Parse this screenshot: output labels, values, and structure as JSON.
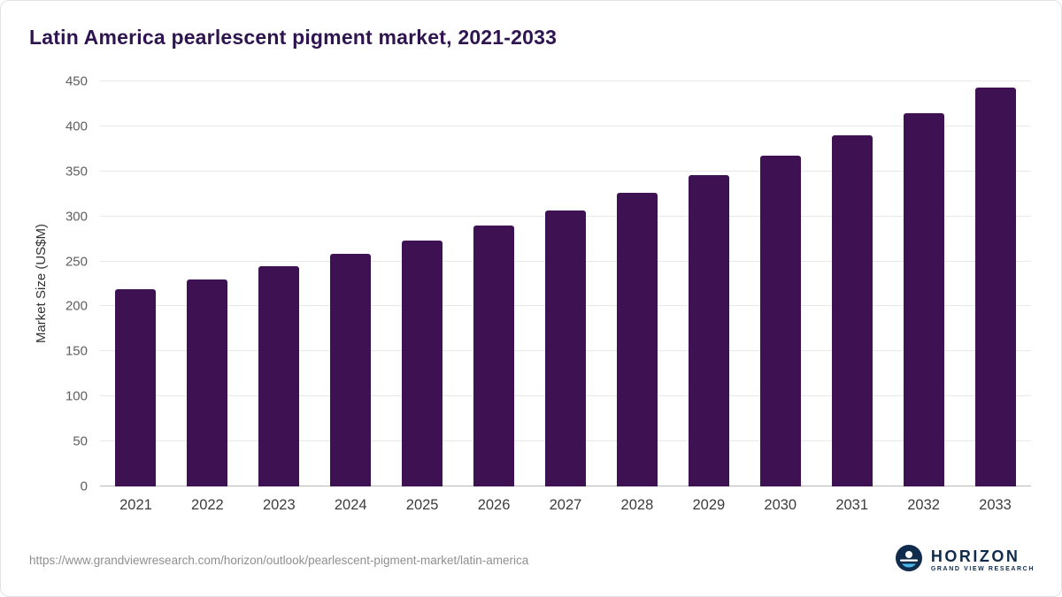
{
  "title": "Latin America pearlescent pigment market, 2021-2033",
  "footer": {
    "source_url": "https://www.grandviewresearch.com/horizon/outlook/pearlescent-pigment-market/latin-america",
    "logo": {
      "name": "HORIZON",
      "subtitle": "GRAND VIEW RESEARCH"
    }
  },
  "colors": {
    "bar": "#3d1152",
    "title": "#2e1550",
    "logo_navy": "#102b4b",
    "logo_accent": "#4ab9e8"
  },
  "chart_data": {
    "type": "bar",
    "title": "Latin America pearlescent pigment market, 2021-2033",
    "categories": [
      "2021",
      "2022",
      "2023",
      "2024",
      "2025",
      "2026",
      "2027",
      "2028",
      "2029",
      "2030",
      "2031",
      "2032",
      "2033"
    ],
    "values": [
      219,
      230,
      245,
      258,
      273,
      290,
      307,
      326,
      346,
      367,
      390,
      415,
      443
    ],
    "xlabel": "",
    "ylabel": "Market Size (US$M)",
    "ylim": [
      0,
      450
    ],
    "yticks": [
      0,
      50,
      100,
      150,
      200,
      250,
      300,
      350,
      400,
      450
    ],
    "grid": true,
    "legend": false,
    "bar_color": "#3d1152"
  }
}
